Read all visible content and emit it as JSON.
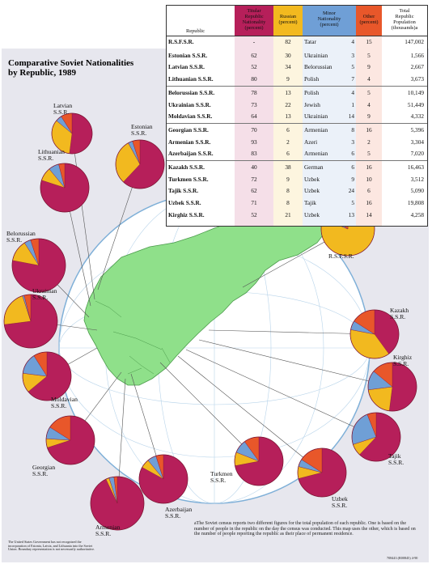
{
  "title_line1": "Comparative Soviet Nationalities",
  "title_line2": "by Republic, 1989",
  "table": {
    "headers": {
      "republic": "Republic",
      "titular": [
        "Titular",
        "Republic",
        "Nationality",
        "(percent)"
      ],
      "russian": [
        "Russian",
        "(percent)"
      ],
      "minor": [
        "Minor",
        "Nationality",
        "(percent)"
      ],
      "other": [
        "Other",
        "(percent)"
      ],
      "population": [
        "Total",
        "Republic",
        "Population",
        "(thousands)a"
      ]
    },
    "rows": [
      {
        "republic": "R.S.F.S.R.",
        "titular": "-",
        "russian": "82",
        "minor_name": "Tatar",
        "minor_pct": "4",
        "other": "15",
        "population": "147,002"
      },
      {
        "republic": "Estonian S.S.R.",
        "titular": "62",
        "russian": "30",
        "minor_name": "Ukrainian",
        "minor_pct": "3",
        "other": "5",
        "population": "1,566"
      },
      {
        "republic": "Latvian S.S.R.",
        "titular": "52",
        "russian": "34",
        "minor_name": "Belorussian",
        "minor_pct": "5",
        "other": "9",
        "population": "2,667"
      },
      {
        "republic": "Lithuanian S.S.R.",
        "titular": "80",
        "russian": "9",
        "minor_name": "Polish",
        "minor_pct": "7",
        "other": "4",
        "population": "3,673"
      },
      {
        "republic": "Belorussian S.S.R.",
        "titular": "78",
        "russian": "13",
        "minor_name": "Polish",
        "minor_pct": "4",
        "other": "5",
        "population": "10,149"
      },
      {
        "republic": "Ukrainian S.S.R.",
        "titular": "73",
        "russian": "22",
        "minor_name": "Jewish",
        "minor_pct": "1",
        "other": "4",
        "population": "51,449"
      },
      {
        "republic": "Moldavian S.S.R.",
        "titular": "64",
        "russian": "13",
        "minor_name": "Ukrainian",
        "minor_pct": "14",
        "other": "9",
        "population": "4,332"
      },
      {
        "republic": "Georgian S.S.R.",
        "titular": "70",
        "russian": "6",
        "minor_name": "Armenian",
        "minor_pct": "8",
        "other": "16",
        "population": "5,396"
      },
      {
        "republic": "Armenian S.S.R.",
        "titular": "93",
        "russian": "2",
        "minor_name": "Azeri",
        "minor_pct": "3",
        "other": "2",
        "population": "3,304"
      },
      {
        "republic": "Azerbaijan S.S.R.",
        "titular": "83",
        "russian": "6",
        "minor_name": "Armenian",
        "minor_pct": "6",
        "other": "5",
        "population": "7,020"
      },
      {
        "republic": "Kazakh S.S.R.",
        "titular": "40",
        "russian": "38",
        "minor_name": "German",
        "minor_pct": "6",
        "other": "16",
        "population": "16,463"
      },
      {
        "republic": "Turkmen S.S.R.",
        "titular": "72",
        "russian": "9",
        "minor_name": "Uzbek",
        "minor_pct": "9",
        "other": "10",
        "population": "3,512"
      },
      {
        "republic": "Tajik S.S.R.",
        "titular": "62",
        "russian": "8",
        "minor_name": "Uzbek",
        "minor_pct": "24",
        "other": "6",
        "population": "5,090"
      },
      {
        "republic": "Uzbek S.S.R.",
        "titular": "71",
        "russian": "8",
        "minor_name": "Tajik",
        "minor_pct": "5",
        "other": "16",
        "population": "19,808"
      },
      {
        "republic": "Kirghiz S.S.R.",
        "titular": "52",
        "russian": "21",
        "minor_name": "Uzbek",
        "minor_pct": "13",
        "other": "14",
        "population": "4,258"
      }
    ]
  },
  "labels": {
    "latvian": [
      "Latvian",
      "S.S.R."
    ],
    "estonian": [
      "Estonian",
      "S.S.R."
    ],
    "lithuanian": [
      "Lithuanian",
      "S.S.R."
    ],
    "belorussian": [
      "Belorussian",
      "S.S.R."
    ],
    "ukrainian": [
      "Ukrainian",
      "S.S.R."
    ],
    "moldavian": [
      "Moldavian",
      "S.S.R."
    ],
    "georgian": [
      "Georgian",
      "S.S.R."
    ],
    "armenian": [
      "Armenian",
      "S.S.R."
    ],
    "azerbaijan": [
      "Azerbaijan",
      "S.S.R."
    ],
    "turkmen": [
      "Turkmen",
      "S.S.R."
    ],
    "uzbek": [
      "Uzbek",
      "S.S.R."
    ],
    "tajik": [
      "Tajik",
      "S.S.R."
    ],
    "kirghiz": [
      "Kirghiz",
      "S.S.R."
    ],
    "kazakh": [
      "Kazakh",
      "S.S.R."
    ],
    "rsfsr": [
      "R.S.F.S.R."
    ]
  },
  "footnote": "aThe Soviet census reports two different figures for the total population of each republic. One is based on the number of people in the republic on the day the census was conducted. This map uses the other, which is based on the number of people reporting the republic as their place of permanent residence.",
  "disclaimer": "The United States Government has not recognized the incorporation of Estonia, Latvia, and Lithuania into the Soviet Union. Boundary representation is not necessarily authoritative.",
  "catalog_number": "708443 (R00845) 4-90",
  "colors": {
    "titular": "#b61f5a",
    "russian": "#f2b91f",
    "minor": "#6f9fd6",
    "other": "#e8572a",
    "land": "#8fe08a",
    "ocean": "#ffffff",
    "panel": "#e7e7ee"
  },
  "chart_data": {
    "type": "pie",
    "categories": [
      "Titular Republic Nationality",
      "Russian",
      "Minor Nationality",
      "Other"
    ],
    "series": [
      {
        "name": "R.S.F.S.R.",
        "values": [
          0,
          82,
          4,
          15
        ]
      },
      {
        "name": "Estonian S.S.R.",
        "values": [
          62,
          30,
          3,
          5
        ]
      },
      {
        "name": "Latvian S.S.R.",
        "values": [
          52,
          34,
          5,
          9
        ]
      },
      {
        "name": "Lithuanian S.S.R.",
        "values": [
          80,
          9,
          7,
          4
        ]
      },
      {
        "name": "Belorussian S.S.R.",
        "values": [
          78,
          13,
          4,
          5
        ]
      },
      {
        "name": "Ukrainian S.S.R.",
        "values": [
          73,
          22,
          1,
          4
        ]
      },
      {
        "name": "Moldavian S.S.R.",
        "values": [
          64,
          13,
          14,
          9
        ]
      },
      {
        "name": "Georgian S.S.R.",
        "values": [
          70,
          6,
          8,
          16
        ]
      },
      {
        "name": "Armenian S.S.R.",
        "values": [
          93,
          2,
          3,
          2
        ]
      },
      {
        "name": "Azerbaijan S.S.R.",
        "values": [
          83,
          6,
          6,
          5
        ]
      },
      {
        "name": "Kazakh S.S.R.",
        "values": [
          40,
          38,
          6,
          16
        ]
      },
      {
        "name": "Turkmen S.S.R.",
        "values": [
          72,
          9,
          9,
          10
        ]
      },
      {
        "name": "Tajik S.S.R.",
        "values": [
          62,
          8,
          24,
          6
        ]
      },
      {
        "name": "Uzbek S.S.R.",
        "values": [
          71,
          8,
          5,
          16
        ]
      },
      {
        "name": "Kirghiz S.S.R.",
        "values": [
          52,
          21,
          13,
          14
        ]
      }
    ]
  }
}
